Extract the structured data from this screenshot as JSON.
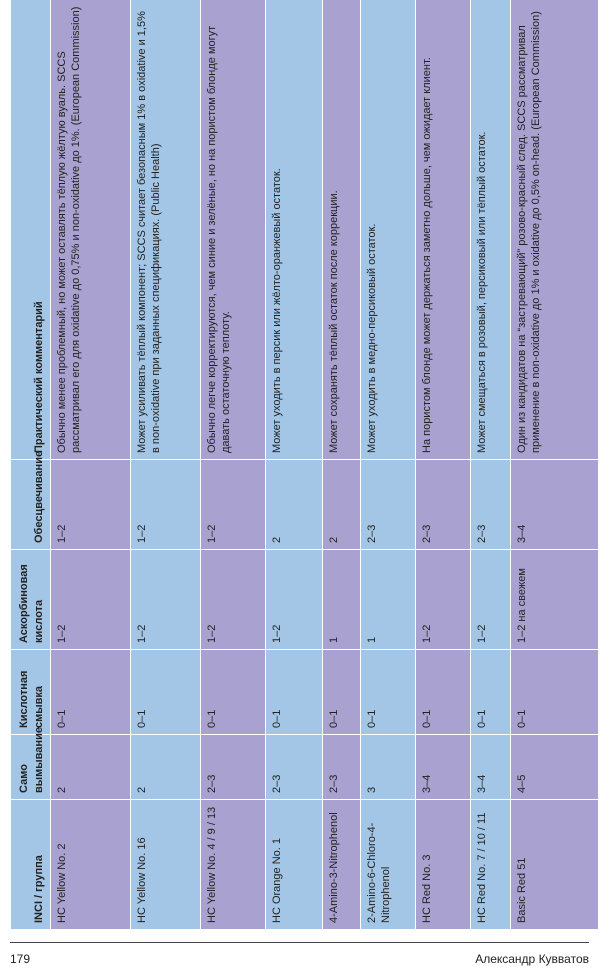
{
  "table": {
    "header": [
      "INCI / группа",
      "Само вымывание",
      "Кислотная смывка",
      "Аскорбиновая кислота",
      "Обесцвечивание",
      "Практический комментарий"
    ],
    "rows": [
      [
        "HC Yellow No. 2",
        "2",
        "0–1",
        "1–2",
        "1–2",
        "Обычно менее проблемный, но может оставлять тёплую жёлтую вуаль. SCCS рассматривал его для oxidative до 0,75% и non-oxidative до 1%. (European Commission)"
      ],
      [
        "HC Yellow No. 16",
        "2",
        "0–1",
        "1–2",
        "1–2",
        "Может усиливать тёплый компонент; SCCS считает безопасным 1% в oxidative и 1,5% в non-oxidative при заданных спецификациях. (Public Health)"
      ],
      [
        "HC Yellow No. 4 / 9 / 13",
        "2–3",
        "0–1",
        "1–2",
        "1–2",
        "Обычно легче корректируются, чем синие и зелёные, но на пористом блонде могут давать остаточную теплоту."
      ],
      [
        "HC Orange No. 1",
        "2–3",
        "0–1",
        "1–2",
        "2",
        "Может уходить в персик или жёлто-оранжевый остаток."
      ],
      [
        "4-Amino-3-Nitrophenol",
        "2–3",
        "0–1",
        "1",
        "2",
        "Может сохранять тёплый остаток после коррекции."
      ],
      [
        "2-Amino-6-Chloro-4-Nitrophenol",
        "3",
        "0–1",
        "1",
        "2–3",
        "Может уходить в медно-персиковый остаток."
      ],
      [
        "HC Red No. 3",
        "3–4",
        "0–1",
        "1–2",
        "2–3",
        "На пористом блонде может держаться заметно дольше, чем ожидает клиент."
      ],
      [
        "HC Red No. 7 / 10 / 11",
        "3–4",
        "0–1",
        "1–2",
        "2–3",
        "Может смещаться в розовый, персиковый или тёплый остаток."
      ],
      [
        "Basic Red 51",
        "4–5",
        "0–1",
        "1–2 на свежем",
        "3–4",
        "Один из кандидатов на “застревающий” розово-красный след. SCCS рассматривал применение в non-oxidative до 1% и oxidative до 0,5% on-head. (European Commission)"
      ]
    ]
  },
  "footer": {
    "page_number": "179",
    "author": "Александр Кувватов"
  }
}
